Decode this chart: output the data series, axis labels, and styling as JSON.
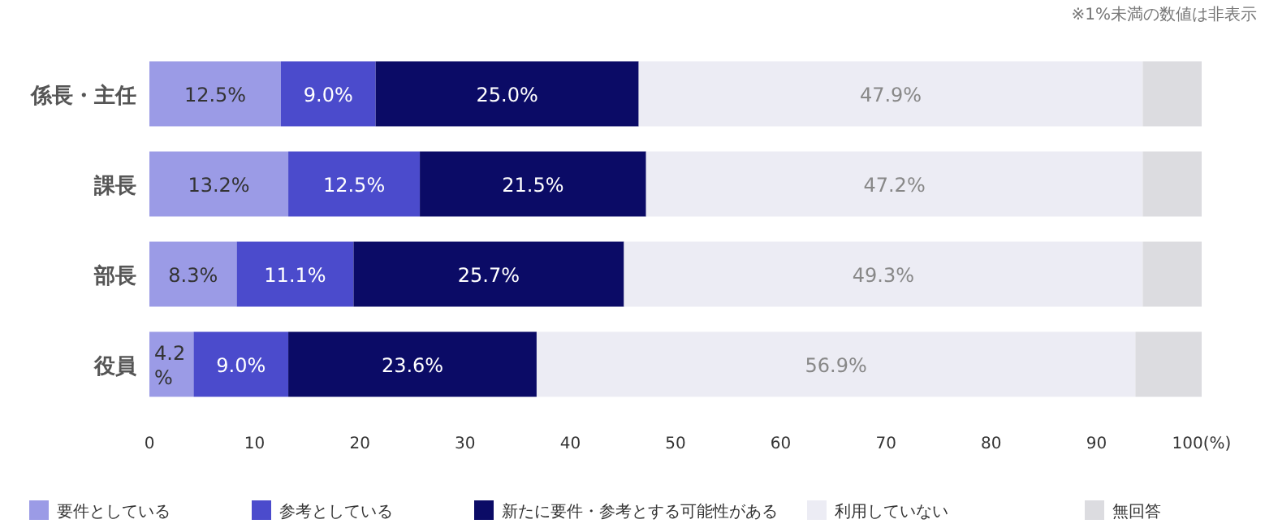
{
  "chart_data": {
    "type": "bar",
    "orientation": "horizontal",
    "stacked": true,
    "categories": [
      "係長・主任",
      "課長",
      "部長",
      "役員"
    ],
    "series": [
      {
        "name": "要件としている",
        "color": "#9b9be6",
        "values": [
          12.5,
          13.2,
          8.3,
          4.2
        ],
        "value_labels": [
          "12.5%",
          "13.2%",
          "8.3%",
          "4.2%"
        ]
      },
      {
        "name": "参考としている",
        "color": "#4b4bcc",
        "values": [
          9.0,
          12.5,
          11.1,
          9.0
        ],
        "value_labels": [
          "9.0%",
          "12.5%",
          "11.1%",
          "9.0%"
        ]
      },
      {
        "name": "新たに要件・参考とする可能性がある",
        "color": "#0b0b66",
        "values": [
          25.0,
          21.5,
          25.7,
          23.6
        ],
        "value_labels": [
          "25.0%",
          "21.5%",
          "25.7%",
          "23.6%"
        ]
      },
      {
        "name": "利用していない",
        "color": "#ececf4",
        "values": [
          47.9,
          47.2,
          49.3,
          56.9
        ],
        "value_labels": [
          "47.9%",
          "47.2%",
          "49.3%",
          "56.9%"
        ]
      },
      {
        "name": "無回答",
        "color": "#dcdce0",
        "values": [
          5.6,
          5.6,
          5.6,
          6.3
        ],
        "value_labels": [
          null,
          null,
          null,
          null
        ]
      }
    ],
    "xlim": [
      0,
      100
    ],
    "xticks": [
      0,
      10,
      20,
      30,
      40,
      50,
      60,
      70,
      80,
      90,
      {
        "value": 100,
        "label": "100(%)"
      }
    ],
    "legend": "bottom",
    "annotations": [
      "※1%未満の数値は非表示"
    ]
  }
}
